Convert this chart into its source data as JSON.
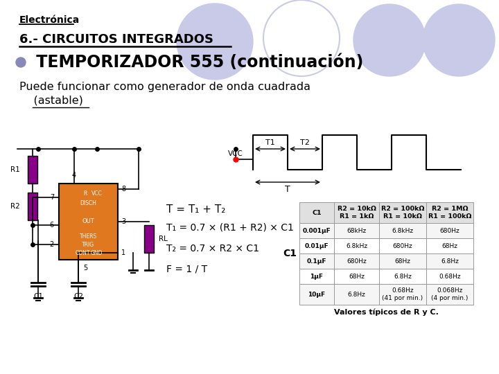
{
  "title_top": "Electrónica",
  "title_section": "6.- CIRCUITOS INTEGRADOS",
  "bullet_color": "#8888bb",
  "bullet_title": " TEMPORIZADOR 555 (continuación)",
  "subtitle_line1": "Puede funcionar como generador de onda cuadrada",
  "subtitle_line2": "    (astable)",
  "formula1": "T = T₁ + T₂",
  "formula2": "T₁ = 0.7 × (R1 + R2) × C1",
  "formula3": "T₂ = 0.7 × R2 × C1",
  "formula4": "F = 1 / T",
  "table_caption": "Valores típicos de R y C.",
  "table_headers": [
    "C1",
    "R2 = 10kΩ\nR1 = 1kΩ",
    "R2 = 100kΩ\nR1 = 10kΩ",
    "R2 = 1MΩ\nR1 = 100kΩ"
  ],
  "table_rows": [
    [
      "0.001μF",
      "68kHz",
      "6.8kHz",
      "680Hz"
    ],
    [
      "0.01μF",
      "6.8kHz",
      "680Hz",
      "68Hz"
    ],
    [
      "0.1μF",
      "680Hz",
      "68Hz",
      "6.8Hz"
    ],
    [
      "1μF",
      "68Hz",
      "6.8Hz",
      "0.68Hz"
    ],
    [
      "10μF",
      "6.8Hz",
      "0.68Hz\n(41 por min.)",
      "0.068Hz\n(4 por min.)"
    ]
  ],
  "bg_color": "#ffffff",
  "circle_color_fill": "#c8cae8",
  "circle_color_outline": "#c8cae8",
  "chip_color": "#e07820",
  "chip_text_color": "#ffffff",
  "resistor_color": "#880088",
  "wire_color": "#000000"
}
